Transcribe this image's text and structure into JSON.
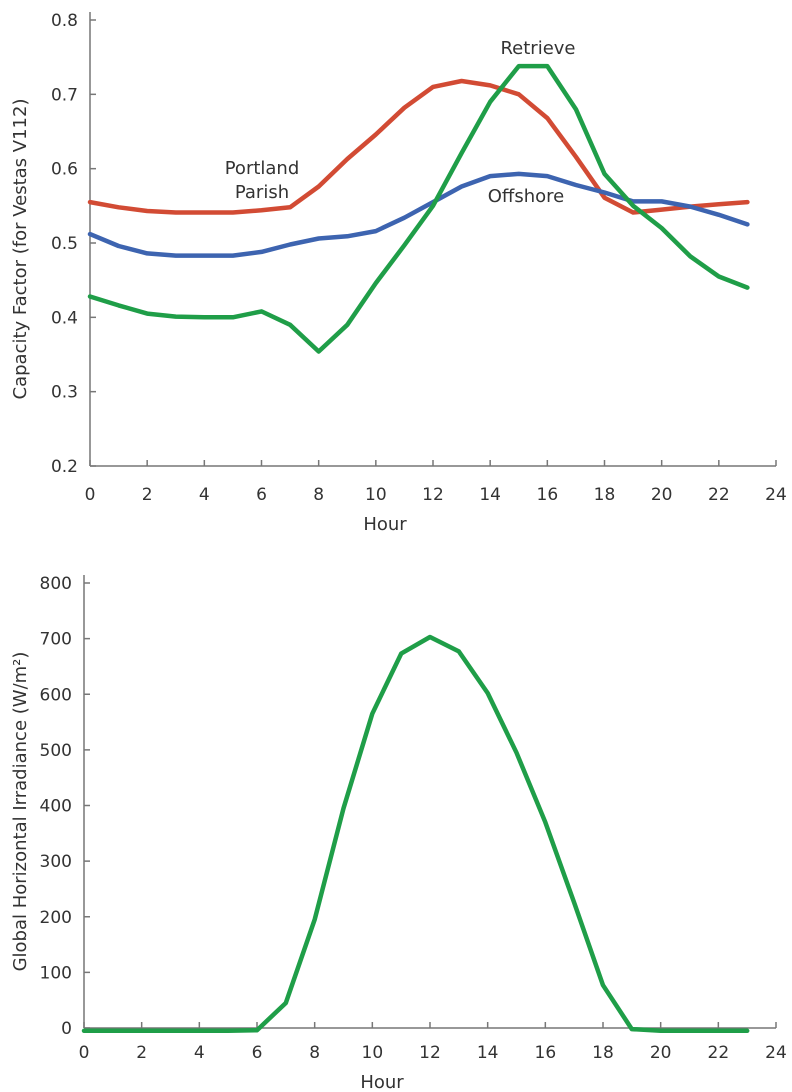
{
  "chart_data": [
    {
      "type": "line",
      "xlabel": "Hour",
      "ylabel": "Capacity Factor (for Vestas V112)",
      "xlim": [
        0,
        24
      ],
      "ylim": [
        0.2,
        0.8
      ],
      "xticks": [
        "0",
        "2",
        "4",
        "6",
        "8",
        "10",
        "12",
        "14",
        "16",
        "18",
        "20",
        "22",
        "24"
      ],
      "yticks": [
        "0.2",
        "0.3",
        "0.4",
        "0.5",
        "0.6",
        "0.7",
        "0.8"
      ],
      "grid": false,
      "legend": "none",
      "x": [
        0,
        1,
        2,
        3,
        4,
        5,
        6,
        7,
        8,
        9,
        10,
        11,
        12,
        13,
        14,
        15,
        16,
        17,
        18,
        19,
        20,
        21,
        22,
        23
      ],
      "series": [
        {
          "name": "Portland Parish",
          "label_lines": [
            "Portland",
            "Parish"
          ],
          "color": "#d24b34",
          "values": [
            0.555,
            0.548,
            0.543,
            0.541,
            0.541,
            0.541,
            0.544,
            0.548,
            0.576,
            0.613,
            0.646,
            0.682,
            0.71,
            0.718,
            0.712,
            0.7,
            0.668,
            0.616,
            0.561,
            0.541,
            0.545,
            0.549,
            0.552,
            0.555
          ]
        },
        {
          "name": "Offshore",
          "label_lines": [
            "Offshore"
          ],
          "color": "#3d64b0",
          "values": [
            0.512,
            0.496,
            0.486,
            0.483,
            0.483,
            0.483,
            0.488,
            0.498,
            0.506,
            0.509,
            0.516,
            0.534,
            0.555,
            0.576,
            0.59,
            0.593,
            0.59,
            0.578,
            0.568,
            0.556,
            0.556,
            0.549,
            0.538,
            0.525
          ]
        },
        {
          "name": "Retrieve",
          "label_lines": [
            "Retrieve"
          ],
          "color": "#1f9e48",
          "values": [
            0.428,
            0.416,
            0.405,
            0.401,
            0.4,
            0.4,
            0.408,
            0.39,
            0.354,
            0.39,
            0.446,
            0.497,
            0.55,
            0.621,
            0.69,
            0.738,
            0.738,
            0.68,
            0.593,
            0.55,
            0.52,
            0.482,
            0.455,
            0.44
          ]
        }
      ]
    },
    {
      "type": "line",
      "xlabel": "Hour",
      "ylabel": "Global Horizontal Irradiance (W/m²)",
      "xlim": [
        0,
        24
      ],
      "ylim": [
        0,
        800
      ],
      "xticks": [
        "0",
        "2",
        "4",
        "6",
        "8",
        "10",
        "12",
        "14",
        "16",
        "18",
        "20",
        "22",
        "24"
      ],
      "yticks": [
        "0",
        "100",
        "200",
        "300",
        "400",
        "500",
        "600",
        "700",
        "800"
      ],
      "grid": false,
      "legend": "none",
      "x": [
        0,
        1,
        2,
        3,
        4,
        5,
        6,
        7,
        8,
        9,
        10,
        11,
        12,
        13,
        14,
        15,
        16,
        17,
        18,
        19,
        20,
        21,
        22,
        23
      ],
      "series": [
        {
          "color": "#1f9e48",
          "values": [
            -5,
            -5,
            -5,
            -5,
            -5,
            -5,
            -4,
            45,
            195,
            395,
            565,
            673,
            703,
            677,
            602,
            495,
            370,
            225,
            77,
            -2,
            -5,
            -5,
            -5,
            -5
          ]
        }
      ]
    }
  ]
}
